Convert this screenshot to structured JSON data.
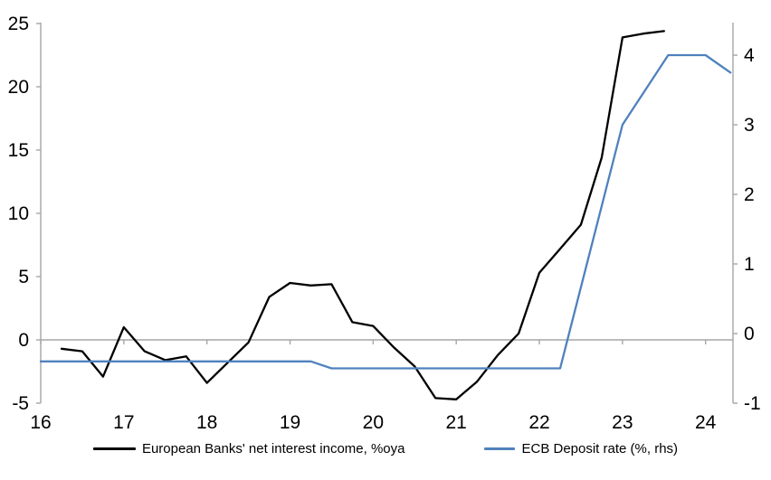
{
  "chart_data": {
    "type": "line",
    "title": "",
    "x_axis": {
      "ticks": [
        16,
        17,
        18,
        19,
        20,
        21,
        22,
        23,
        24
      ],
      "range": [
        16,
        24.33
      ],
      "grid": false
    },
    "left_axis": {
      "ticks": [
        25,
        20,
        15,
        10,
        5,
        0,
        -5
      ],
      "range": [
        -5,
        25.35
      ],
      "grid": false
    },
    "right_axis": {
      "ticks": [
        4,
        3,
        2,
        1,
        0,
        -1
      ],
      "range": [
        -1,
        4.45
      ],
      "grid": false
    },
    "zero_line": true,
    "legend_position": "bottom",
    "series": [
      {
        "name": "European Banks' net interest income, %oya",
        "axis": "left",
        "color": "#000000",
        "points": [
          [
            16.25,
            -0.7
          ],
          [
            16.5,
            -0.9
          ],
          [
            16.75,
            -2.9
          ],
          [
            17.0,
            1.0
          ],
          [
            17.25,
            -0.9
          ],
          [
            17.5,
            -1.6
          ],
          [
            17.75,
            -1.3
          ],
          [
            18.0,
            -3.4
          ],
          [
            18.25,
            -1.8
          ],
          [
            18.5,
            -0.2
          ],
          [
            18.75,
            3.4
          ],
          [
            19.0,
            4.5
          ],
          [
            19.25,
            4.3
          ],
          [
            19.5,
            4.4
          ],
          [
            19.75,
            1.4
          ],
          [
            20.0,
            1.1
          ],
          [
            20.25,
            -0.6
          ],
          [
            20.5,
            -2.1
          ],
          [
            20.75,
            -4.6
          ],
          [
            21.0,
            -4.7
          ],
          [
            21.25,
            -3.3
          ],
          [
            21.5,
            -1.2
          ],
          [
            21.75,
            0.5
          ],
          [
            22.0,
            5.3
          ],
          [
            22.25,
            7.2
          ],
          [
            22.5,
            9.1
          ],
          [
            22.75,
            14.4
          ],
          [
            23.0,
            23.9
          ],
          [
            23.25,
            24.2
          ],
          [
            23.5,
            24.4
          ]
        ]
      },
      {
        "name": "ECB Deposit rate (%, rhs)",
        "axis": "right",
        "color": "#4f81bd",
        "points": [
          [
            16.0,
            -0.4
          ],
          [
            19.25,
            -0.4
          ],
          [
            19.5,
            -0.5
          ],
          [
            22.25,
            -0.5
          ],
          [
            23.0,
            3.0
          ],
          [
            23.55,
            4.0
          ],
          [
            24.0,
            4.0
          ],
          [
            24.3,
            3.75
          ]
        ]
      }
    ],
    "axis_color": "#a6a6a6",
    "text_color": "#000000"
  }
}
